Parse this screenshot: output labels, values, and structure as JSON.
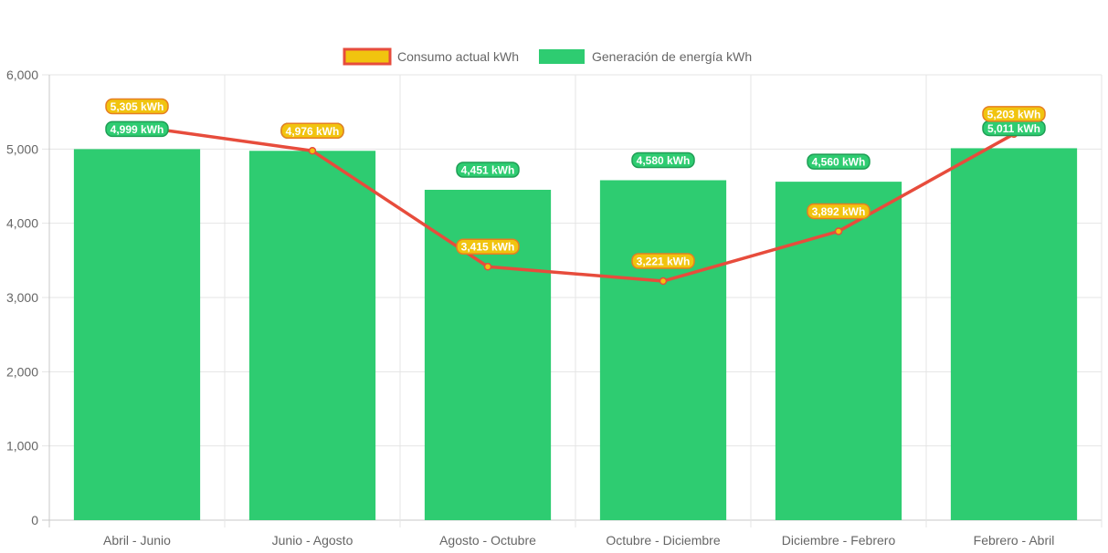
{
  "chart_data": {
    "type": "bar",
    "categories": [
      "Abril - Junio",
      "Junio - Agosto",
      "Agosto - Octubre",
      "Octubre - Diciembre",
      "Diciembre - Febrero",
      "Febrero - Abril"
    ],
    "series": [
      {
        "name": "Consumo actual kWh",
        "type": "line",
        "values": [
          5305,
          4976,
          3415,
          3221,
          3892,
          5203
        ],
        "labels": [
          "5,305 kWh",
          "4,976 kWh",
          "3,415 kWh",
          "3,221 kWh",
          "3,892 kWh",
          "5,203 kWh"
        ],
        "color": "#e74c3c",
        "fill_color": "#f1c40f"
      },
      {
        "name": "Generación de energía kWh",
        "type": "bar",
        "values": [
          4999,
          4976,
          4451,
          4580,
          4560,
          5011
        ],
        "labels": [
          "4,999 kWh",
          "4,976 kWh",
          "4,451 kWh",
          "4,580 kWh",
          "4,560 kWh",
          "5,011 kWh"
        ],
        "color": "#2ecc71"
      }
    ],
    "title": "",
    "xlabel": "",
    "ylabel": "",
    "ylim": [
      0,
      6000
    ],
    "yticks": [
      0,
      1000,
      2000,
      3000,
      4000,
      5000,
      6000
    ],
    "ytick_labels": [
      "0",
      "1,000",
      "2,000",
      "3,000",
      "4,000",
      "5,000",
      "6,000"
    ],
    "grid": true,
    "legend_position": "top-center"
  }
}
